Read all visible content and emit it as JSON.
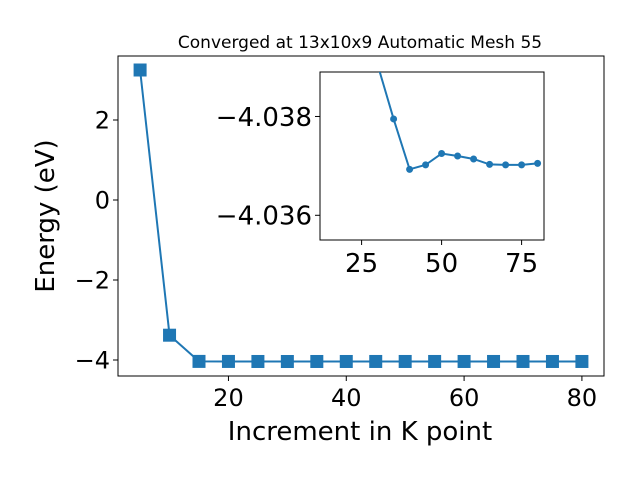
{
  "chart_data": [
    {
      "type": "line",
      "title": "Converged at 13x10x9 Automatic Mesh 55",
      "xlabel": "Increment in K point",
      "ylabel": "Energy (eV)",
      "xlim": [
        1.25,
        83.75
      ],
      "ylim": [
        -4.4,
        3.6
      ],
      "xticks": [
        20,
        40,
        60,
        80
      ],
      "yticks": [
        -4,
        -2,
        0,
        2
      ],
      "x": [
        5,
        10,
        15,
        20,
        25,
        30,
        35,
        40,
        45,
        50,
        55,
        60,
        65,
        70,
        75,
        80
      ],
      "series": [
        {
          "color": "#1f77b4",
          "marker": "square",
          "values": [
            3.25,
            -3.38,
            -4.035,
            -4.036,
            -4.037,
            -4.0376,
            -4.0371,
            -4.0371,
            -4.0367,
            -4.0368,
            -4.0368,
            -4.0369,
            -4.0368,
            -4.0368,
            -4.0369,
            -4.0369
          ]
        }
      ],
      "grid": false
    },
    {
      "type": "line",
      "inset": true,
      "xlim": [
        12,
        82
      ],
      "ylim": [
        -4.0355,
        -4.0389
      ],
      "xticks": [
        25,
        50,
        75
      ],
      "yticks": [
        -4.038,
        -4.036
      ],
      "x": [
        30,
        35,
        40,
        45,
        50,
        55,
        60,
        65,
        70,
        75,
        80
      ],
      "series": [
        {
          "color": "#1f77b4",
          "marker": "circle",
          "values": [
            -4.03905,
            -4.03795,
            -4.03693,
            -4.03702,
            -4.03725,
            -4.0372,
            -4.03714,
            -4.03703,
            -4.03702,
            -4.03702,
            -4.03705
          ]
        }
      ],
      "grid": false
    }
  ]
}
